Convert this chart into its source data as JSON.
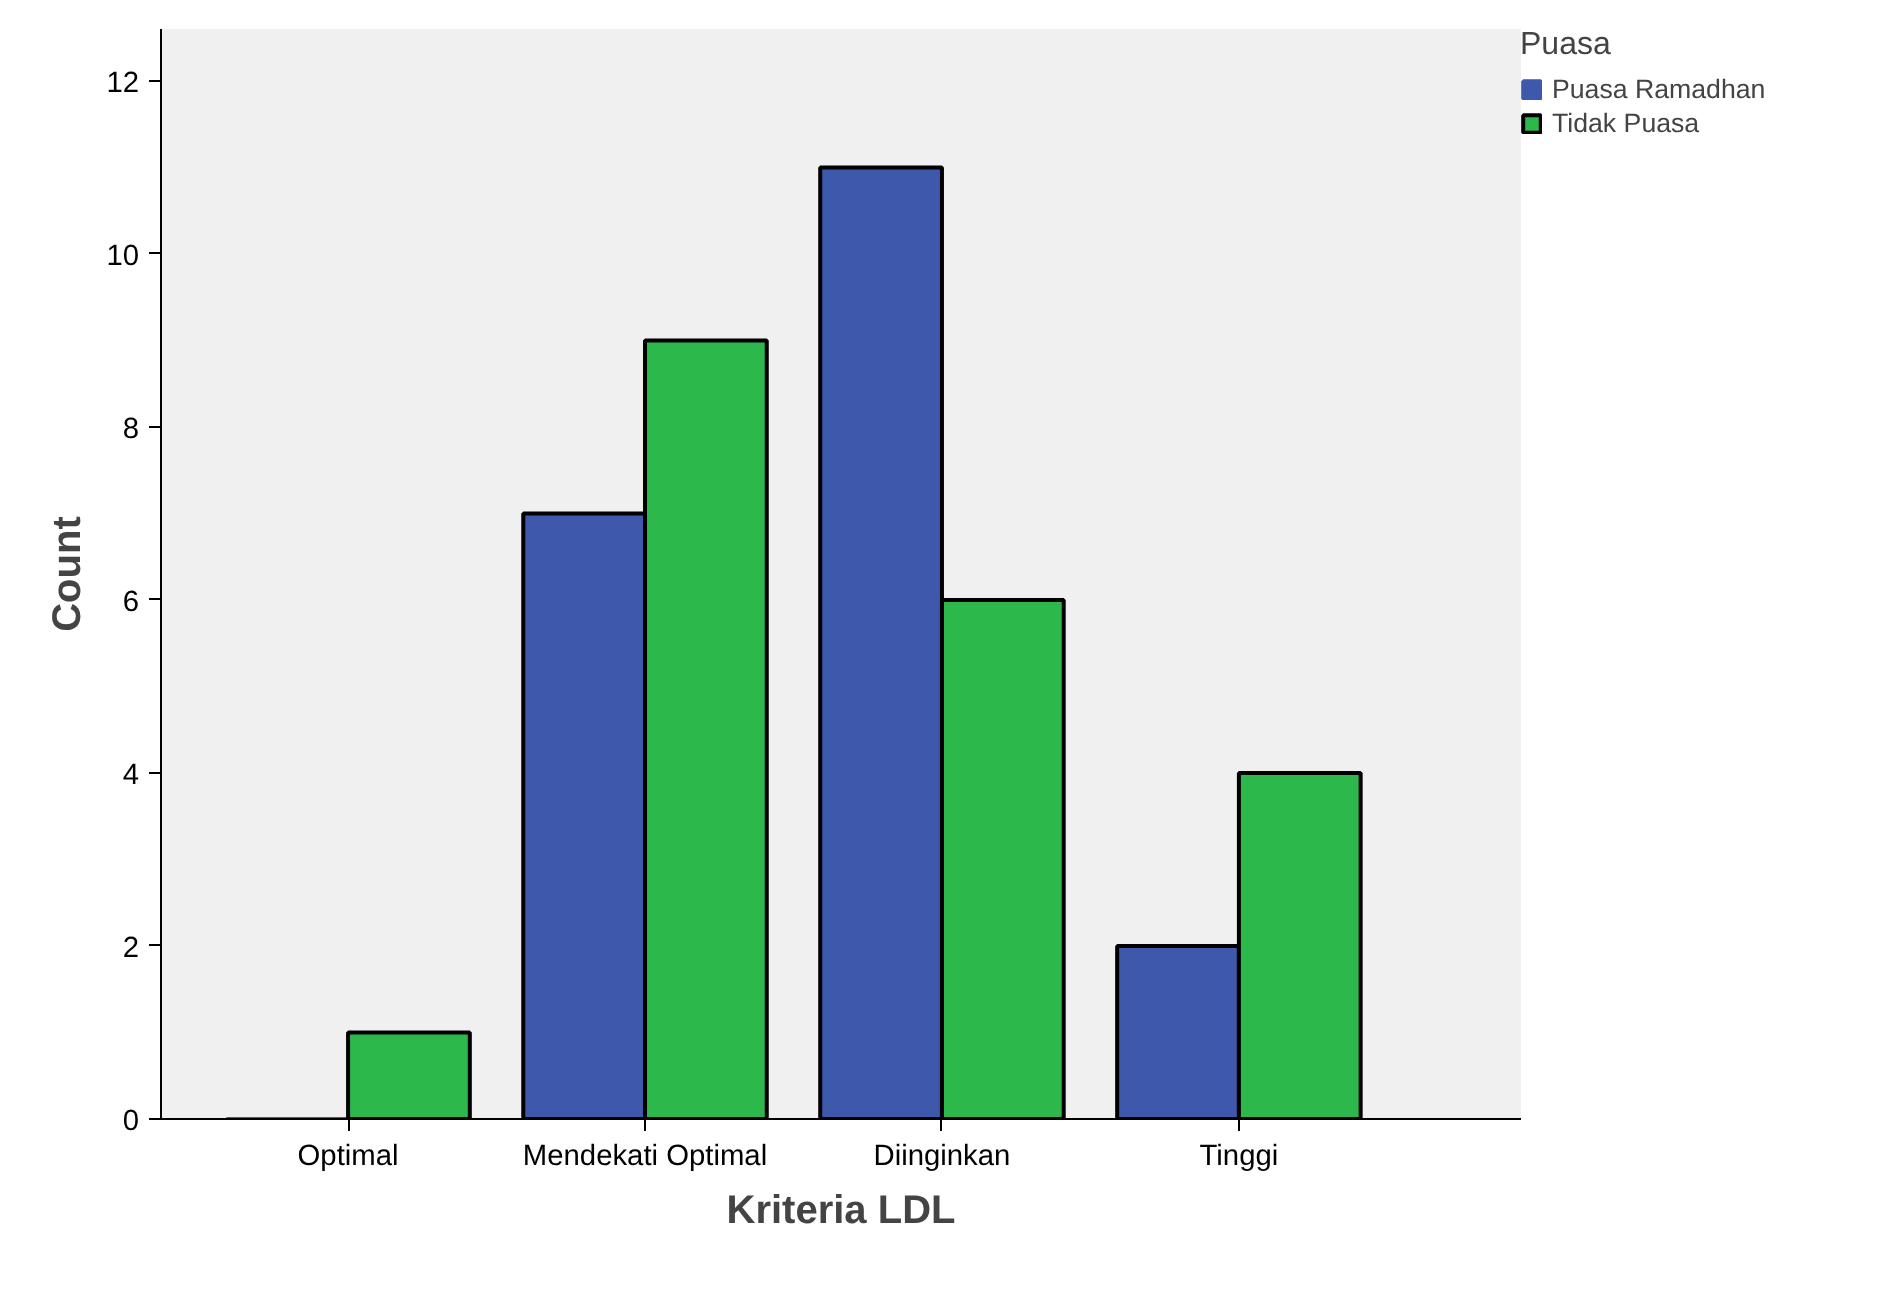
{
  "chart_data": {
    "type": "bar",
    "xlabel": "Kriteria LDL",
    "ylabel": "Count",
    "legend_title": "Puasa",
    "legend": "top right",
    "categories": [
      "Optimal",
      "Mendekati Optimal",
      "Diinginkan",
      "Tinggi"
    ],
    "series": [
      {
        "name": "Puasa Ramadhan",
        "color": "#3e58ac",
        "values": [
          0,
          7,
          11,
          2
        ]
      },
      {
        "name": "Tidak Puasa",
        "color": "#2db84b",
        "values": [
          1,
          9,
          6,
          4
        ]
      }
    ],
    "ylim": [
      0,
      12.6
    ],
    "yticks": [
      0,
      2,
      4,
      6,
      8,
      10,
      12
    ],
    "grid": false
  }
}
